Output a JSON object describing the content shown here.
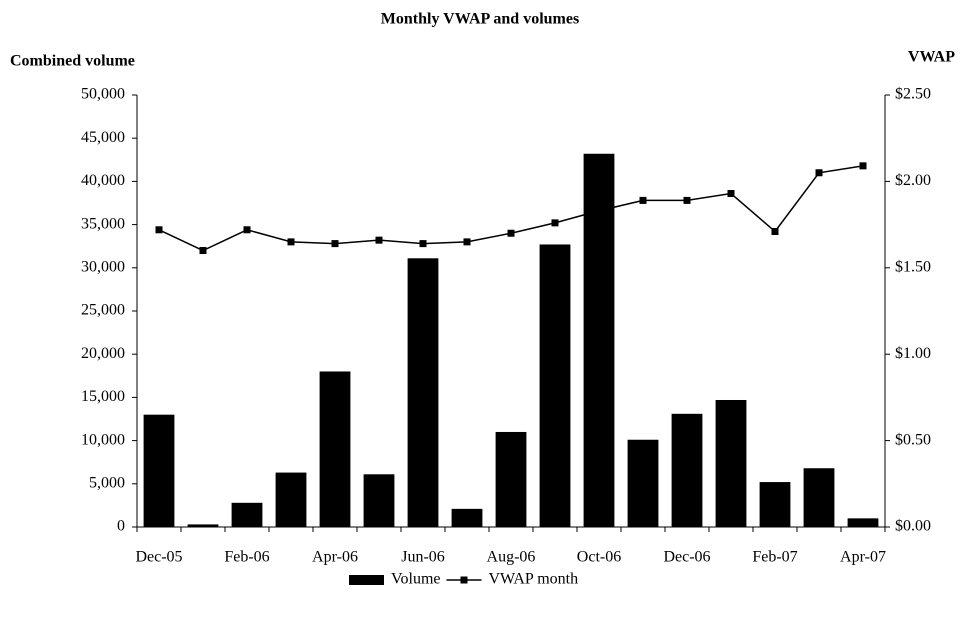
{
  "chart_data": {
    "type": "bar-line",
    "title": "Monthly VWAP and volumes",
    "y_label": "Combined volume",
    "y2_label": "VWAP",
    "categories": [
      "Dec-05",
      null,
      "Feb-06",
      null,
      "Apr-06",
      null,
      "Jun-06",
      null,
      "Aug-06",
      null,
      "Oct-06",
      null,
      "Dec-06",
      null,
      "Feb-07",
      null,
      "Apr-07"
    ],
    "series": [
      {
        "name": "Volume",
        "type": "bar",
        "color": "#000000",
        "values": [
          13000,
          300,
          2800,
          6300,
          18000,
          6100,
          31100,
          2100,
          11000,
          32700,
          43200,
          10100,
          13100,
          14700,
          5200,
          6800,
          1000
        ]
      },
      {
        "name": "VWAP month",
        "type": "line",
        "axis": "y2",
        "color": "#000000",
        "values": [
          1.72,
          1.6,
          1.72,
          1.65,
          1.64,
          1.66,
          1.64,
          1.65,
          1.7,
          1.76,
          1.83,
          1.89,
          1.89,
          1.93,
          1.71,
          2.05,
          2.09
        ]
      }
    ],
    "ylim": [
      0,
      50000
    ],
    "yticks": [
      0,
      {
        "value": 5000,
        "label": "5,000"
      },
      {
        "value": 10000,
        "label": "10,000"
      },
      {
        "value": 15000,
        "label": "15,000"
      },
      {
        "value": 20000,
        "label": "20,000"
      },
      {
        "value": 25000,
        "label": "25,000"
      },
      {
        "value": 30000,
        "label": "30,000"
      },
      {
        "value": 35000,
        "label": "35,000"
      },
      {
        "value": 40000,
        "label": "40,000"
      },
      {
        "value": 45000,
        "label": "45,000"
      },
      {
        "value": 50000,
        "label": "50,000"
      }
    ],
    "y2lim": [
      0,
      2.5
    ],
    "y2ticks": [
      {
        "value": 0,
        "label": "$0.00"
      },
      {
        "value": 0.5,
        "label": "$0.50"
      },
      {
        "value": 1,
        "label": "$1.00"
      },
      {
        "value": 1.5,
        "label": "$1.50"
      },
      {
        "value": 2,
        "label": "$2.00"
      },
      {
        "value": 2.5,
        "label": "$2.50"
      }
    ],
    "legend": "bottom"
  }
}
